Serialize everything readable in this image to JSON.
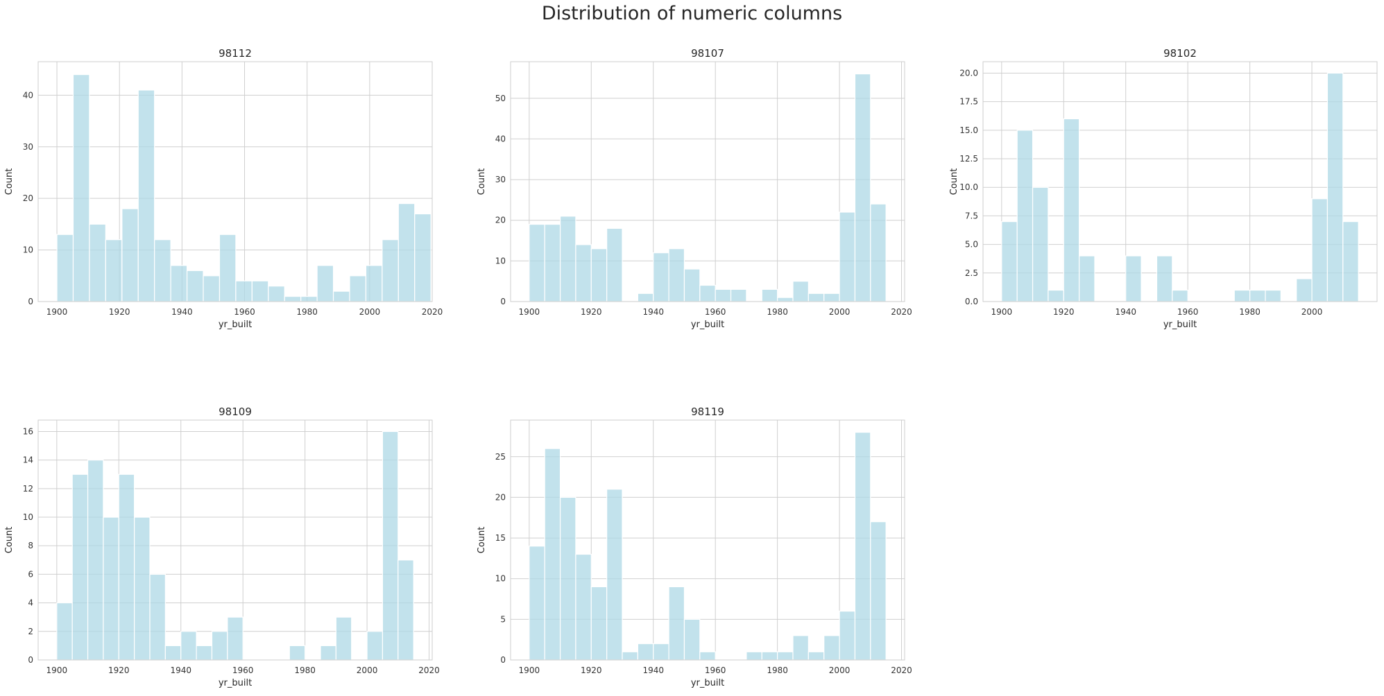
{
  "title": "Distribution of numeric columns",
  "colors": {
    "bar_fill": "#add8e6",
    "bar_edge": "#ffffff",
    "grid": "#cfcfcf",
    "spine": "#cccccc"
  },
  "chart_data": [
    {
      "type": "bar",
      "title": "98112",
      "xlabel": "yr_built",
      "ylabel": "Count",
      "bin_start": 1900,
      "bin_width": 5.2,
      "values": [
        13,
        44,
        15,
        12,
        18,
        41,
        12,
        7,
        6,
        5,
        13,
        4,
        4,
        3,
        1,
        1,
        7,
        2,
        5,
        7,
        12,
        19,
        17
      ],
      "xlim": [
        1894,
        2020
      ],
      "ylim": [
        0,
        46.5
      ],
      "xticks": [
        1900,
        1920,
        1940,
        1960,
        1980,
        2000,
        2020
      ],
      "yticks": [
        0,
        10,
        20,
        30,
        40
      ],
      "ytick_labels": [
        "0",
        "10",
        "20",
        "30",
        "40"
      ],
      "grid": true
    },
    {
      "type": "bar",
      "title": "98107",
      "xlabel": "yr_built",
      "ylabel": "Count",
      "bin_start": 1900,
      "bin_width": 5,
      "values": [
        19,
        19,
        21,
        14,
        13,
        18,
        0,
        2,
        12,
        13,
        8,
        4,
        3,
        3,
        0,
        3,
        1,
        5,
        2,
        2,
        22,
        56,
        24
      ],
      "xlim": [
        1894,
        2021
      ],
      "ylim": [
        0,
        59
      ],
      "xticks": [
        1900,
        1920,
        1940,
        1960,
        1980,
        2000,
        2020
      ],
      "yticks": [
        0,
        10,
        20,
        30,
        40,
        50
      ],
      "ytick_labels": [
        "0",
        "10",
        "20",
        "30",
        "40",
        "50"
      ],
      "grid": true
    },
    {
      "type": "bar",
      "title": "98102",
      "xlabel": "yr_built",
      "ylabel": "Count",
      "bin_start": 1900,
      "bin_width": 5,
      "values": [
        7,
        15,
        10,
        1,
        16,
        4,
        0,
        0,
        4,
        0,
        4,
        1,
        0,
        0,
        0,
        1,
        1,
        1,
        0,
        2,
        9,
        20,
        7
      ],
      "xlim": [
        1894,
        2021
      ],
      "ylim": [
        0,
        21
      ],
      "xticks": [
        1900,
        1920,
        1940,
        1960,
        1980,
        2000
      ],
      "yticks": [
        0,
        2.5,
        5,
        7.5,
        10,
        12.5,
        15,
        17.5,
        20
      ],
      "ytick_labels": [
        "0.0",
        "2.5",
        "5.0",
        "7.5",
        "10.0",
        "12.5",
        "15.0",
        "17.5",
        "20.0"
      ],
      "grid": true
    },
    {
      "type": "bar",
      "title": "98109",
      "xlabel": "yr_built",
      "ylabel": "Count",
      "bin_start": 1900,
      "bin_width": 5,
      "values": [
        4,
        13,
        14,
        10,
        13,
        10,
        6,
        1,
        2,
        1,
        2,
        3,
        0,
        0,
        0,
        1,
        0,
        1,
        3,
        0,
        2,
        16,
        7
      ],
      "xlim": [
        1894,
        2021
      ],
      "ylim": [
        0,
        16.8
      ],
      "xticks": [
        1900,
        1920,
        1940,
        1960,
        1980,
        2000,
        2020
      ],
      "yticks": [
        0,
        2,
        4,
        6,
        8,
        10,
        12,
        14,
        16
      ],
      "ytick_labels": [
        "0",
        "2",
        "4",
        "6",
        "8",
        "10",
        "12",
        "14",
        "16"
      ],
      "grid": true
    },
    {
      "type": "bar",
      "title": "98119",
      "xlabel": "yr_built",
      "ylabel": "Count",
      "bin_start": 1900,
      "bin_width": 5,
      "values": [
        14,
        26,
        20,
        13,
        9,
        21,
        1,
        2,
        2,
        9,
        5,
        1,
        0,
        0,
        1,
        1,
        1,
        3,
        1,
        3,
        6,
        28,
        17
      ],
      "xlim": [
        1894,
        2021
      ],
      "ylim": [
        0,
        29.5
      ],
      "xticks": [
        1900,
        1920,
        1940,
        1960,
        1980,
        2000,
        2020
      ],
      "yticks": [
        0,
        5,
        10,
        15,
        20,
        25
      ],
      "ytick_labels": [
        "0",
        "5",
        "10",
        "15",
        "20",
        "25"
      ],
      "grid": true
    }
  ]
}
